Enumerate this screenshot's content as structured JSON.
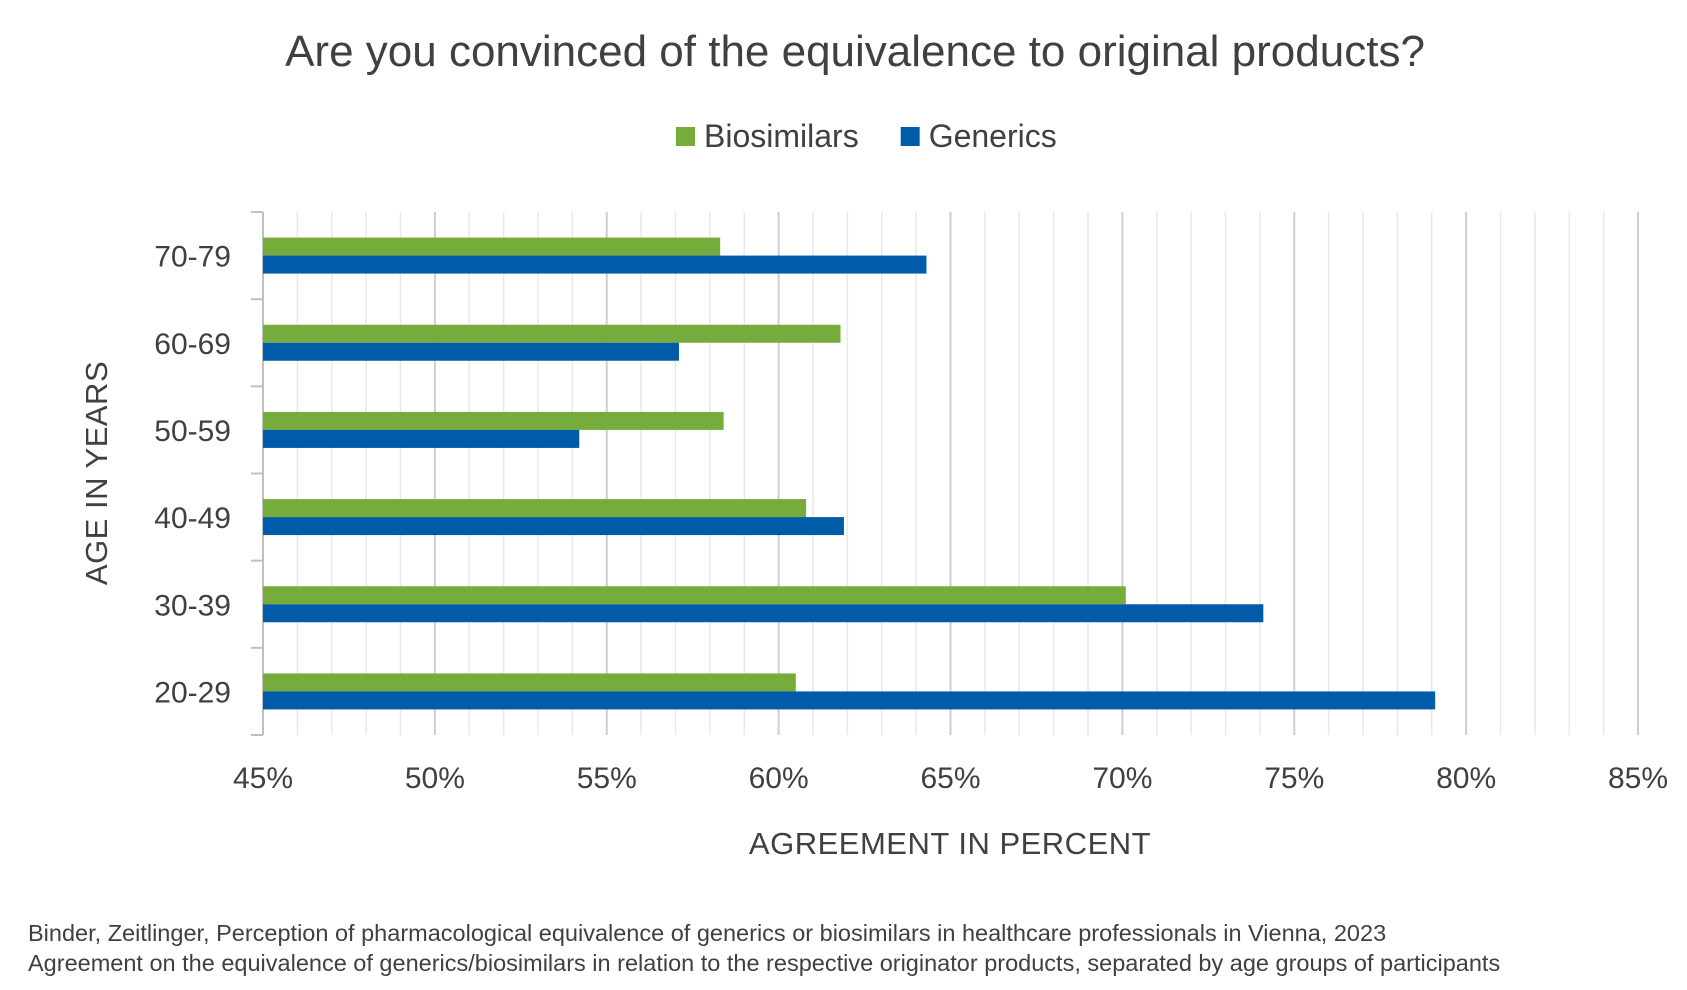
{
  "chart_data": {
    "type": "bar",
    "orientation": "horizontal",
    "title": "Are you convinced of the equivalence to original products?",
    "xlabel": "AGREEMENT IN PERCENT",
    "ylabel": "AGE IN YEARS",
    "categories": [
      "70-79",
      "60-69",
      "50-59",
      "40-49",
      "30-39",
      "20-29"
    ],
    "series": [
      {
        "name": "Biosimilars",
        "color": "#76AC3C",
        "values": [
          58.3,
          61.8,
          58.4,
          60.8,
          70.1,
          60.5
        ]
      },
      {
        "name": "Generics",
        "color": "#005CA8",
        "values": [
          64.3,
          57.1,
          54.2,
          61.9,
          74.1,
          79.1
        ]
      }
    ],
    "xlim": [
      45,
      85
    ],
    "xticks": [
      45,
      50,
      55,
      60,
      65,
      70,
      75,
      80,
      85
    ],
    "xtick_labels": [
      "45%",
      "50%",
      "55%",
      "60%",
      "65%",
      "70%",
      "75%",
      "80%",
      "85%"
    ],
    "grid": true,
    "minor_grid_step": 1,
    "legend_position": "top-center"
  },
  "footnote": {
    "line1": "Binder, Zeitlinger, Perception of pharmacological equivalence of generics or biosimilars in healthcare professionals in Vienna, 2023",
    "line2": "Agreement on the equivalence of generics/biosimilars in relation to the respective originator products, separated by age groups of participants"
  }
}
